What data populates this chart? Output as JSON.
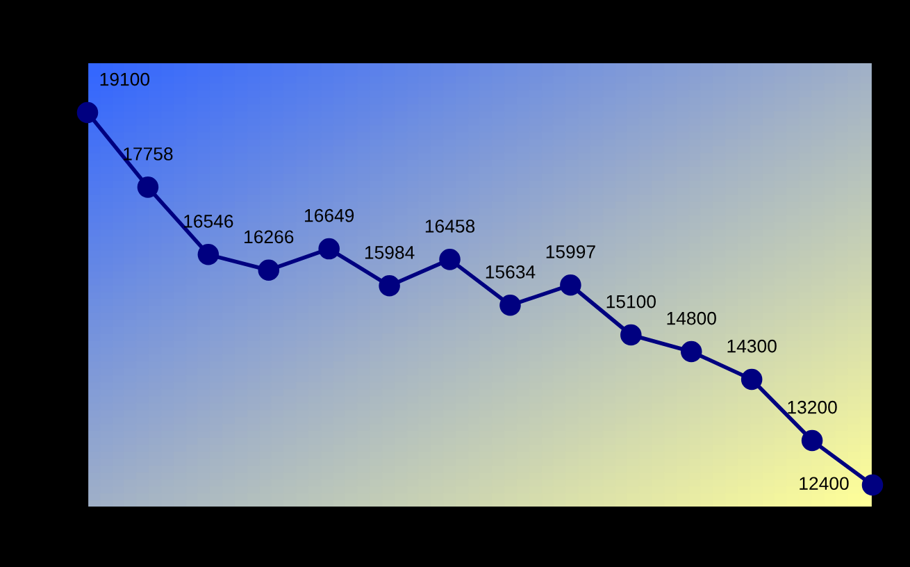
{
  "chart_data": {
    "type": "line",
    "categories": [
      null,
      null,
      null,
      null,
      null,
      null,
      null,
      null,
      null,
      null,
      null,
      null,
      null,
      null
    ],
    "series": [
      {
        "color": "#000080",
        "values": [
          19100,
          17758,
          16546,
          16266,
          16649,
          15984,
          16458,
          15634,
          15997,
          15100,
          14800,
          14300,
          13200,
          12400
        ]
      }
    ],
    "ylim": [
      12000,
      20000
    ],
    "grid": false,
    "marker": "circle",
    "line_style": "solid",
    "data_labels": true
  }
}
